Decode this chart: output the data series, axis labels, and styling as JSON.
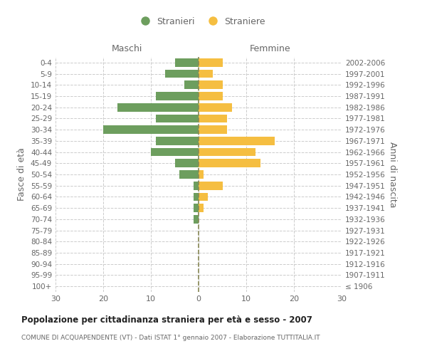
{
  "age_groups": [
    "100+",
    "95-99",
    "90-94",
    "85-89",
    "80-84",
    "75-79",
    "70-74",
    "65-69",
    "60-64",
    "55-59",
    "50-54",
    "45-49",
    "40-44",
    "35-39",
    "30-34",
    "25-29",
    "20-24",
    "15-19",
    "10-14",
    "5-9",
    "0-4"
  ],
  "birth_years": [
    "≤ 1906",
    "1907-1911",
    "1912-1916",
    "1917-1921",
    "1922-1926",
    "1927-1931",
    "1932-1936",
    "1937-1941",
    "1942-1946",
    "1947-1951",
    "1952-1956",
    "1957-1961",
    "1962-1966",
    "1967-1971",
    "1972-1976",
    "1977-1981",
    "1982-1986",
    "1987-1991",
    "1992-1996",
    "1997-2001",
    "2002-2006"
  ],
  "males": [
    0,
    0,
    0,
    0,
    0,
    0,
    1,
    1,
    1,
    1,
    4,
    5,
    10,
    9,
    20,
    9,
    17,
    9,
    3,
    7,
    5
  ],
  "females": [
    0,
    0,
    0,
    0,
    0,
    0,
    0,
    1,
    2,
    5,
    1,
    13,
    12,
    16,
    6,
    6,
    7,
    5,
    5,
    3,
    5
  ],
  "male_color": "#6d9e5e",
  "female_color": "#f5be41",
  "grid_color": "#cccccc",
  "center_line_color": "#888855",
  "title": "Popolazione per cittadinanza straniera per età e sesso - 2007",
  "subtitle": "COMUNE DI ACQUAPENDENTE (VT) - Dati ISTAT 1° gennaio 2007 - Elaborazione TUTTITALIA.IT",
  "ylabel_left": "Fasce di età",
  "ylabel_right": "Anni di nascita",
  "xlabel_max": 30,
  "legend_stranieri": "Stranieri",
  "legend_straniere": "Straniere",
  "maschi_label": "Maschi",
  "femmine_label": "Femmine",
  "bg_color": "#ffffff",
  "text_color": "#666666",
  "title_color": "#222222"
}
